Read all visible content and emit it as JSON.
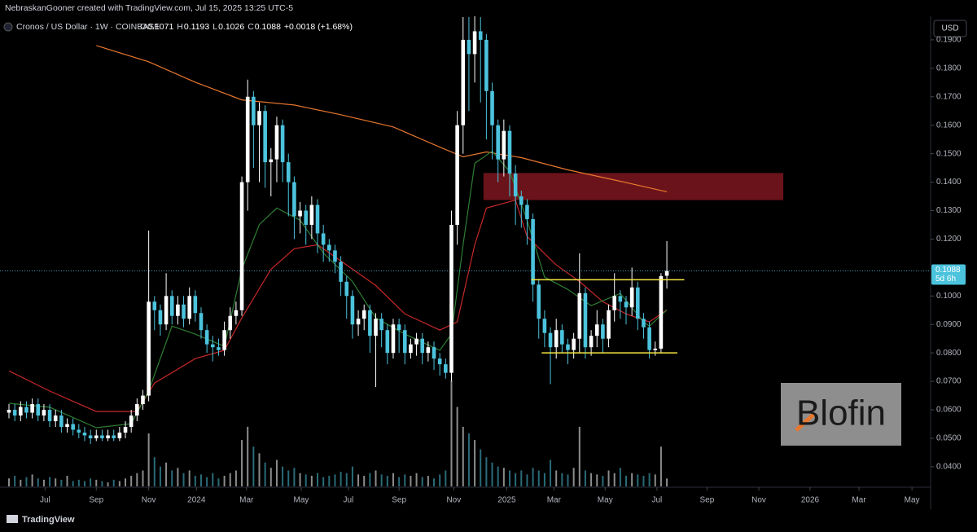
{
  "header": {
    "attribution": "NebraskanGooner created with TradingView.com, Jul 15, 2025 13:25 UTC-5",
    "symbol": "Cronos / US Dollar · 1W · COINBASE",
    "ohlc": [
      {
        "label": "O",
        "value": "0.1071"
      },
      {
        "label": "H",
        "value": "0.1193"
      },
      {
        "label": "L",
        "value": "0.1026"
      },
      {
        "label": "C",
        "value": "0.1088"
      }
    ],
    "change": "+0.0018 (+1.68%)",
    "currency": "USD",
    "footer": "TradingView",
    "watermark": "Blofin"
  },
  "chart_data": {
    "type": "candlestick",
    "up_color": "#ffffff",
    "down_color": "#4cc3dd",
    "open": [
      0.059,
      0.06,
      0.058,
      0.061,
      0.059,
      0.062,
      0.058,
      0.06,
      0.056,
      0.058,
      0.054,
      0.055,
      0.053,
      0.052,
      0.051,
      0.05,
      0.051,
      0.05,
      0.051,
      0.05,
      0.052,
      0.054,
      0.058,
      0.062,
      0.065,
      0.098,
      0.095,
      0.09,
      0.1,
      0.093,
      0.097,
      0.092,
      0.1,
      0.094,
      0.088,
      0.083,
      0.082,
      0.081,
      0.088,
      0.093,
      0.095,
      0.14,
      0.17,
      0.16,
      0.165,
      0.147,
      0.148,
      0.16,
      0.147,
      0.14,
      0.128,
      0.13,
      0.125,
      0.132,
      0.122,
      0.118,
      0.116,
      0.112,
      0.105,
      0.1,
      0.09,
      0.092,
      0.095,
      0.086,
      0.092,
      0.088,
      0.08,
      0.09,
      0.088,
      0.08,
      0.083,
      0.085,
      0.08,
      0.082,
      0.078,
      0.076,
      0.073,
      0.125,
      0.16,
      0.19,
      0.185,
      0.193,
      0.19,
      0.172,
      0.16,
      0.148,
      0.158,
      0.143,
      0.135,
      0.132,
      0.127,
      0.104,
      0.092,
      0.087,
      0.082,
      0.088,
      0.083,
      0.081,
      0.085,
      0.101,
      0.082,
      0.086,
      0.09,
      0.085,
      0.095,
      0.1,
      0.098,
      0.096,
      0.103,
      0.092,
      0.089,
      0.081,
      0.0815,
      0.1071
    ],
    "high": [
      0.062,
      0.062,
      0.063,
      0.063,
      0.064,
      0.064,
      0.062,
      0.062,
      0.06,
      0.06,
      0.057,
      0.057,
      0.055,
      0.054,
      0.053,
      0.053,
      0.053,
      0.053,
      0.053,
      0.054,
      0.056,
      0.06,
      0.064,
      0.067,
      0.123,
      0.1,
      0.097,
      0.108,
      0.102,
      0.1,
      0.1,
      0.103,
      0.102,
      0.096,
      0.09,
      0.086,
      0.085,
      0.091,
      0.096,
      0.098,
      0.142,
      0.176,
      0.172,
      0.168,
      0.167,
      0.152,
      0.163,
      0.162,
      0.15,
      0.142,
      0.133,
      0.132,
      0.135,
      0.134,
      0.125,
      0.12,
      0.118,
      0.114,
      0.107,
      0.102,
      0.095,
      0.097,
      0.097,
      0.094,
      0.094,
      0.09,
      0.092,
      0.092,
      0.09,
      0.085,
      0.087,
      0.087,
      0.084,
      0.084,
      0.08,
      0.078,
      0.13,
      0.165,
      0.198,
      0.198,
      0.2,
      0.198,
      0.192,
      0.175,
      0.162,
      0.162,
      0.16,
      0.146,
      0.137,
      0.134,
      0.129,
      0.106,
      0.095,
      0.089,
      0.092,
      0.09,
      0.085,
      0.087,
      0.115,
      0.103,
      0.088,
      0.095,
      0.092,
      0.097,
      0.108,
      0.102,
      0.1,
      0.11,
      0.105,
      0.094,
      0.091,
      0.084,
      0.108,
      0.1193
    ],
    "low": [
      0.057,
      0.056,
      0.056,
      0.057,
      0.057,
      0.056,
      0.056,
      0.054,
      0.054,
      0.052,
      0.052,
      0.051,
      0.05,
      0.049,
      0.048,
      0.049,
      0.049,
      0.049,
      0.049,
      0.049,
      0.05,
      0.052,
      0.056,
      0.06,
      0.063,
      0.088,
      0.086,
      0.088,
      0.09,
      0.09,
      0.089,
      0.09,
      0.091,
      0.085,
      0.08,
      0.077,
      0.079,
      0.079,
      0.085,
      0.09,
      0.093,
      0.13,
      0.145,
      0.14,
      0.138,
      0.135,
      0.14,
      0.14,
      0.128,
      0.12,
      0.122,
      0.118,
      0.12,
      0.115,
      0.112,
      0.112,
      0.108,
      0.1,
      0.092,
      0.085,
      0.086,
      0.088,
      0.08,
      0.068,
      0.082,
      0.076,
      0.078,
      0.08,
      0.076,
      0.078,
      0.079,
      0.076,
      0.077,
      0.074,
      0.072,
      0.071,
      0.07,
      0.118,
      0.15,
      0.165,
      0.175,
      0.168,
      0.155,
      0.148,
      0.14,
      0.142,
      0.135,
      0.125,
      0.124,
      0.118,
      0.098,
      0.085,
      0.082,
      0.069,
      0.078,
      0.08,
      0.076,
      0.078,
      0.08,
      0.078,
      0.079,
      0.082,
      0.08,
      0.082,
      0.091,
      0.092,
      0.09,
      0.093,
      0.088,
      0.085,
      0.078,
      0.079,
      0.08,
      0.1026
    ],
    "close": [
      0.06,
      0.058,
      0.061,
      0.059,
      0.062,
      0.058,
      0.06,
      0.056,
      0.058,
      0.054,
      0.055,
      0.053,
      0.052,
      0.051,
      0.05,
      0.051,
      0.05,
      0.051,
      0.05,
      0.052,
      0.054,
      0.058,
      0.062,
      0.065,
      0.098,
      0.095,
      0.09,
      0.1,
      0.093,
      0.097,
      0.092,
      0.1,
      0.094,
      0.088,
      0.083,
      0.082,
      0.081,
      0.088,
      0.093,
      0.095,
      0.14,
      0.17,
      0.16,
      0.165,
      0.147,
      0.148,
      0.16,
      0.147,
      0.14,
      0.128,
      0.13,
      0.125,
      0.132,
      0.122,
      0.118,
      0.116,
      0.112,
      0.105,
      0.1,
      0.09,
      0.092,
      0.095,
      0.086,
      0.092,
      0.088,
      0.08,
      0.09,
      0.088,
      0.08,
      0.083,
      0.085,
      0.08,
      0.082,
      0.078,
      0.076,
      0.073,
      0.125,
      0.16,
      0.19,
      0.185,
      0.193,
      0.19,
      0.172,
      0.16,
      0.148,
      0.158,
      0.143,
      0.135,
      0.132,
      0.127,
      0.104,
      0.092,
      0.087,
      0.082,
      0.088,
      0.083,
      0.081,
      0.085,
      0.101,
      0.082,
      0.086,
      0.09,
      0.085,
      0.095,
      0.1,
      0.098,
      0.096,
      0.103,
      0.092,
      0.089,
      0.081,
      0.0815,
      0.107,
      0.1088
    ],
    "volume": [
      6,
      8,
      5,
      7,
      9,
      6,
      5,
      7,
      6,
      5,
      8,
      4,
      5,
      4,
      6,
      5,
      4,
      3,
      5,
      4,
      6,
      8,
      10,
      12,
      40,
      22,
      15,
      18,
      12,
      14,
      10,
      12,
      8,
      9,
      7,
      10,
      6,
      8,
      10,
      12,
      35,
      45,
      30,
      25,
      18,
      14,
      20,
      15,
      12,
      14,
      10,
      9,
      8,
      10,
      7,
      8,
      9,
      11,
      10,
      15,
      9,
      8,
      10,
      12,
      9,
      8,
      10,
      7,
      9,
      8,
      10,
      7,
      8,
      6,
      9,
      12,
      80,
      60,
      45,
      40,
      35,
      28,
      22,
      18,
      15,
      14,
      12,
      10,
      12,
      9,
      14,
      12,
      10,
      20,
      12,
      10,
      9,
      14,
      45,
      12,
      10,
      9,
      8,
      12,
      10,
      14,
      8,
      10,
      9,
      8,
      10,
      9,
      30,
      6
    ],
    "series": [
      {
        "color": "#e8772e",
        "x": [
          15,
          24,
          32,
          40,
          49,
          57,
          66,
          74,
          78,
          82,
          88,
          96,
          105,
          113
        ],
        "values": [
          0.188,
          0.1823,
          0.1751,
          0.1689,
          0.1671,
          0.1637,
          0.1594,
          0.1523,
          0.1489,
          0.1506,
          0.1486,
          0.1443,
          0.1403,
          0.1366
        ]
      },
      {
        "color": "#c62828",
        "x": [
          0,
          7,
          15,
          22,
          25,
          32,
          37,
          40,
          45,
          49,
          53,
          57,
          63,
          68,
          74,
          77,
          80,
          82,
          87,
          89,
          94,
          98,
          102,
          106,
          110,
          113
        ],
        "values": [
          0.0737,
          0.0666,
          0.0594,
          0.0594,
          0.0694,
          0.078,
          0.0809,
          0.0923,
          0.1094,
          0.1166,
          0.118,
          0.1123,
          0.1037,
          0.0937,
          0.088,
          0.0909,
          0.118,
          0.1309,
          0.1337,
          0.1209,
          0.1109,
          0.1051,
          0.098,
          0.0937,
          0.0909,
          0.0951
        ]
      },
      {
        "color": "#2e7d32",
        "x": [
          0,
          7,
          15,
          21,
          24,
          28,
          32,
          37,
          40,
          43,
          46,
          50,
          54,
          59,
          63,
          68,
          74,
          76,
          78,
          80,
          83,
          86,
          89,
          92,
          96,
          100,
          105,
          109,
          110,
          113
        ],
        "values": [
          0.0623,
          0.0609,
          0.0537,
          0.0551,
          0.0666,
          0.0894,
          0.0866,
          0.0823,
          0.1094,
          0.1251,
          0.1309,
          0.1266,
          0.1151,
          0.1051,
          0.0923,
          0.0866,
          0.0809,
          0.0866,
          0.118,
          0.1466,
          0.1509,
          0.1437,
          0.1266,
          0.1066,
          0.1023,
          0.0966,
          0.1009,
          0.0909,
          0.0894,
          0.0951
        ]
      }
    ],
    "zones": [
      {
        "color": "#b3202c",
        "x": [
          81.5,
          133
        ],
        "y": [
          0.1337,
          0.1432
        ]
      }
    ],
    "hlines": [
      {
        "color": "#f5e642",
        "x": [
          89.7,
          116
        ],
        "value": 0.1057
      },
      {
        "color": "#f5e642",
        "x": [
          91.5,
          114.8
        ],
        "value": 0.08
      }
    ],
    "last_price": {
      "value": 0.1088,
      "label": "0.1088",
      "countdown": "5d 6h"
    },
    "xlim": [
      -1.54,
      158.3
    ],
    "ylim": [
      0.0331,
      0.1977
    ],
    "xticks": [
      {
        "value": 6.2,
        "label": "Jul"
      },
      {
        "value": 15,
        "label": "Sep"
      },
      {
        "value": 24,
        "label": "Nov"
      },
      {
        "value": 32.2,
        "label": "2024"
      },
      {
        "value": 40.8,
        "label": "Mar"
      },
      {
        "value": 50.2,
        "label": "May"
      },
      {
        "value": 58.3,
        "label": "Jul"
      },
      {
        "value": 67,
        "label": "Sep"
      },
      {
        "value": 76.4,
        "label": "Nov"
      },
      {
        "value": 85.5,
        "label": "2025"
      },
      {
        "value": 93.6,
        "label": "Mar"
      },
      {
        "value": 102.4,
        "label": "May"
      },
      {
        "value": 111.3,
        "label": "Jul"
      },
      {
        "value": 119.9,
        "label": "Sep"
      },
      {
        "value": 128.8,
        "label": "Nov"
      },
      {
        "value": 137.6,
        "label": "2026"
      },
      {
        "value": 146,
        "label": "Mar"
      },
      {
        "value": 155.1,
        "label": "May"
      }
    ],
    "yticks": [
      {
        "value": 0.04,
        "label": "0.0400"
      },
      {
        "value": 0.05,
        "label": "0.0500"
      },
      {
        "value": 0.06,
        "label": "0.0600"
      },
      {
        "value": 0.07,
        "label": "0.0700"
      },
      {
        "value": 0.08,
        "label": "0.0800"
      },
      {
        "value": 0.09,
        "label": "0.0900"
      },
      {
        "value": 0.1,
        "label": "0.1000"
      },
      {
        "value": 0.12,
        "label": "0.1200"
      },
      {
        "value": 0.13,
        "label": "0.1300"
      },
      {
        "value": 0.14,
        "label": "0.1400"
      },
      {
        "value": 0.15,
        "label": "0.1500"
      },
      {
        "value": 0.16,
        "label": "0.1600"
      },
      {
        "value": 0.17,
        "label": "0.1700"
      },
      {
        "value": 0.18,
        "label": "0.1800"
      },
      {
        "value": 0.19,
        "label": "0.1900"
      }
    ]
  }
}
